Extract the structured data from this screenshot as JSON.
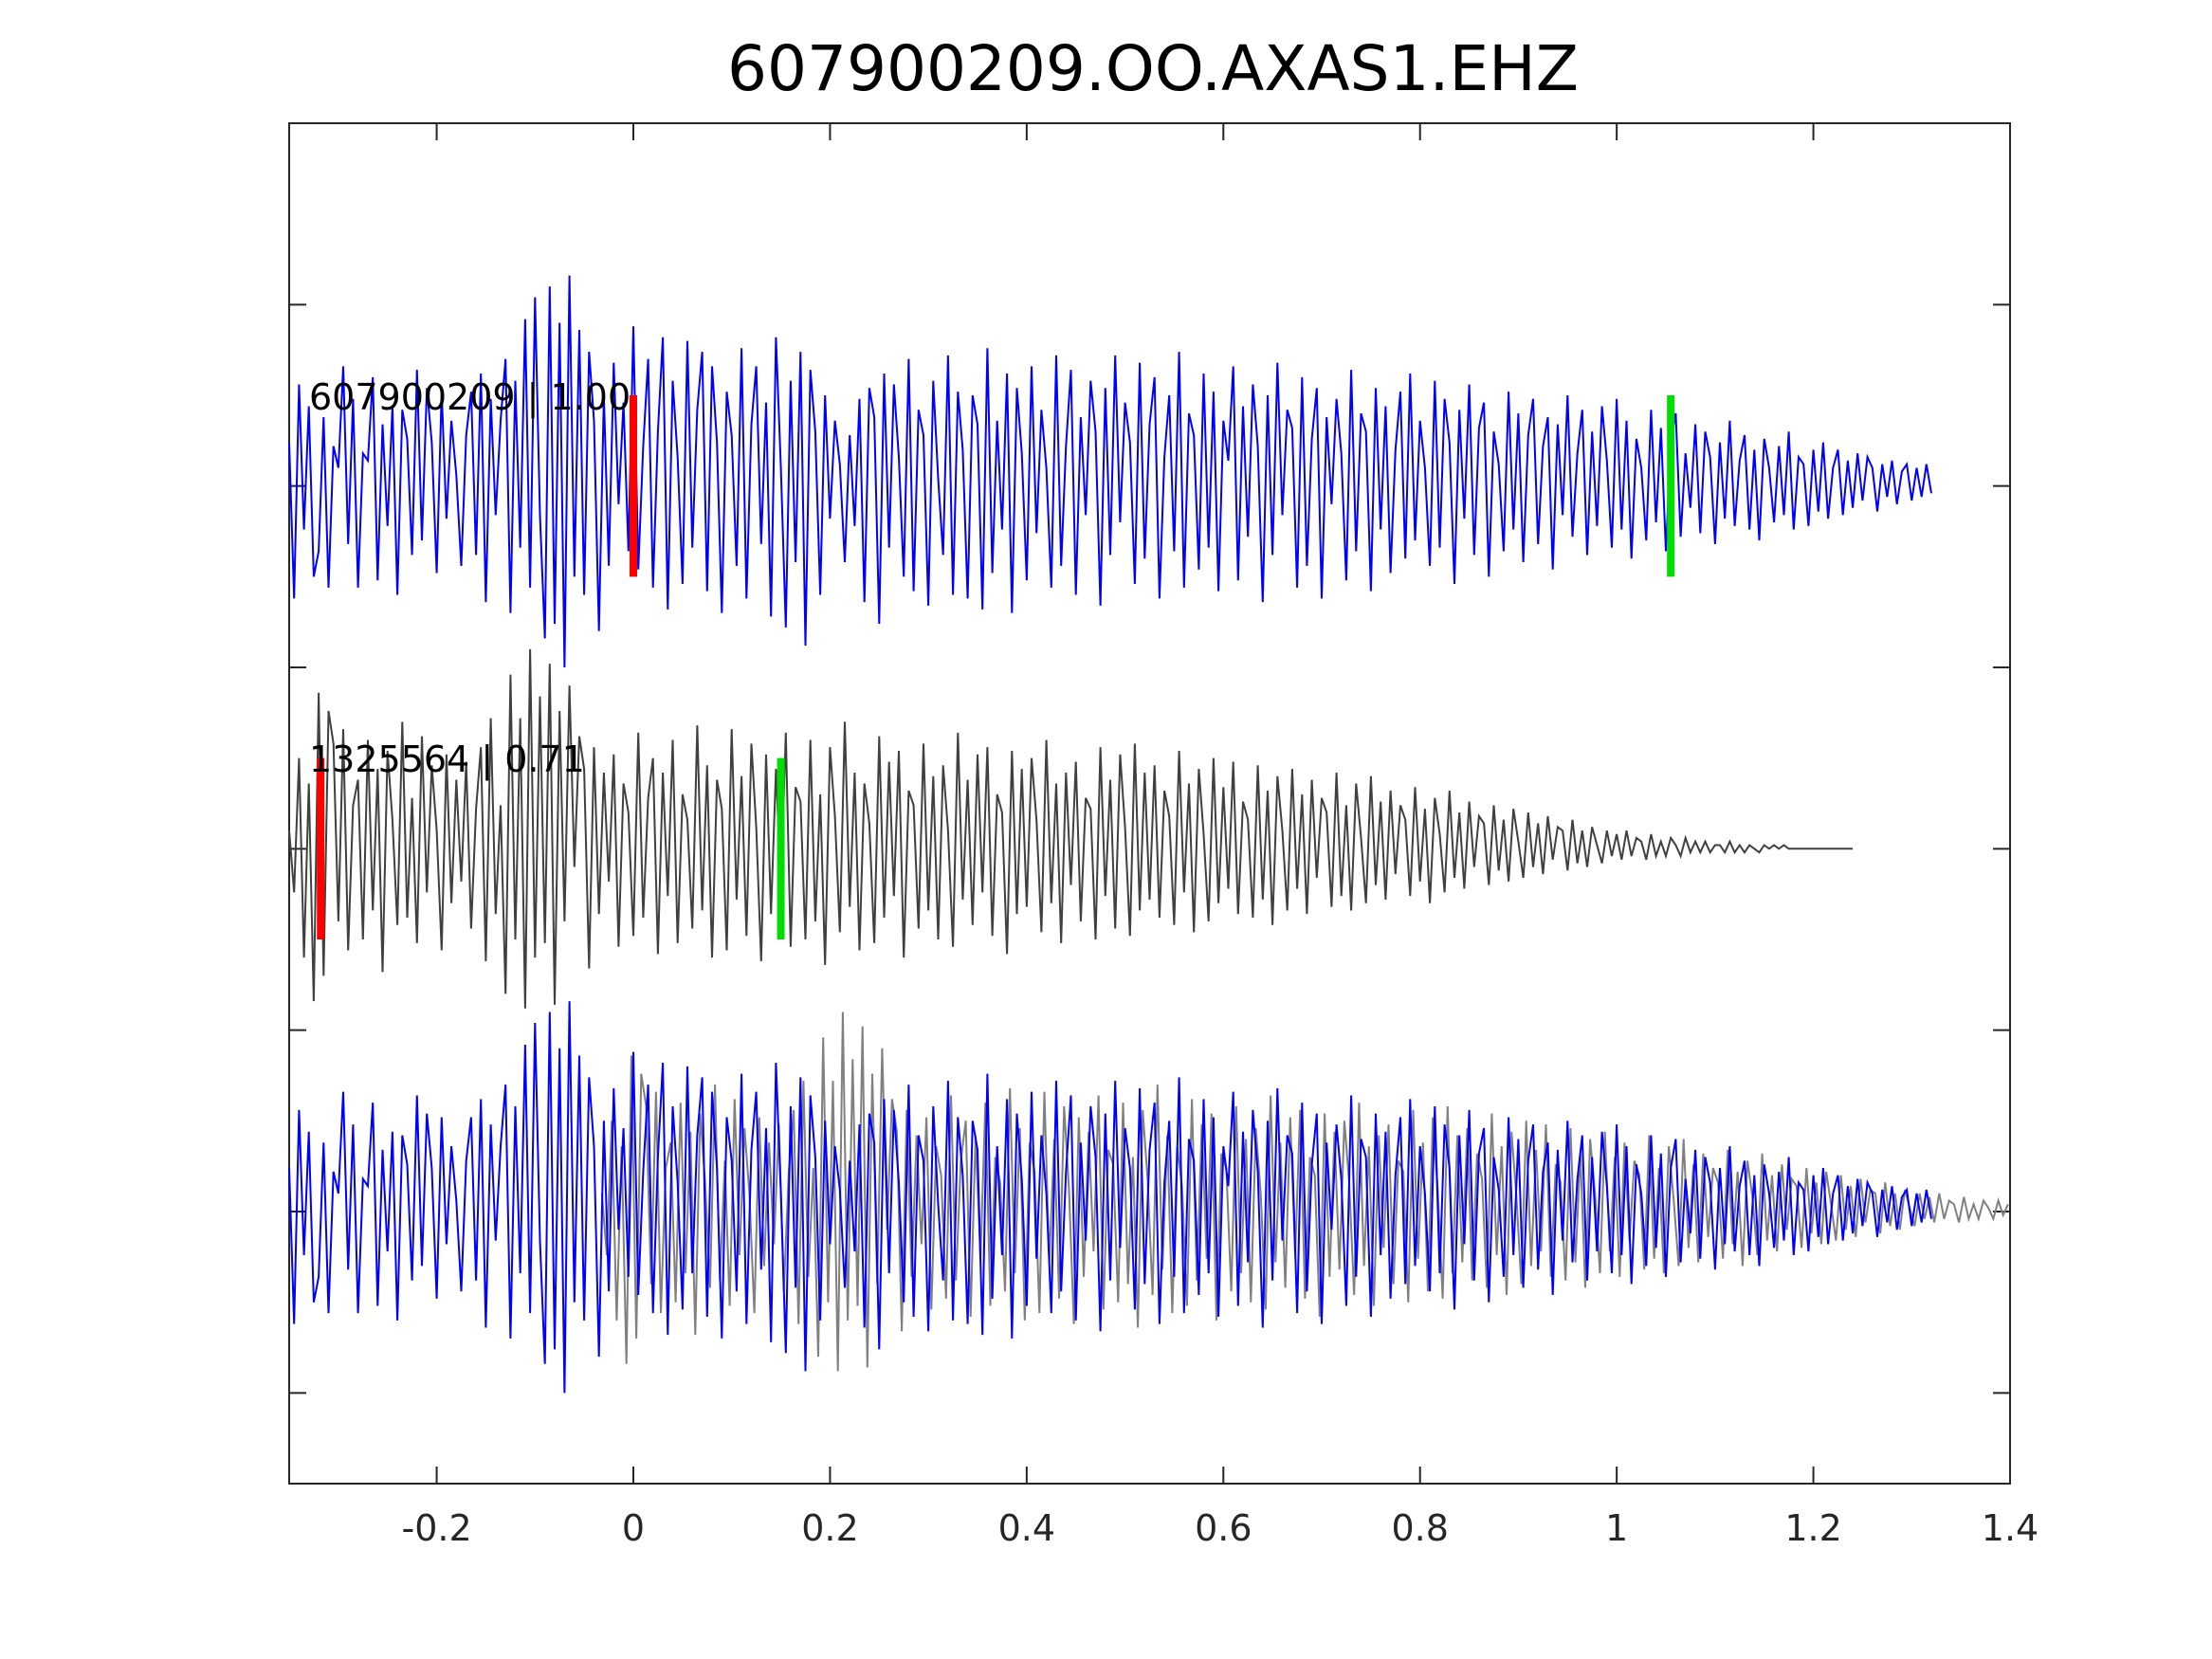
{
  "chart_data": {
    "type": "line",
    "title": "607900209.OO.AXAS1.EHZ",
    "xlabel": "",
    "ylabel": "",
    "xlim": [
      -0.35,
      1.4
    ],
    "xticks": [
      -0.2,
      0,
      0.2,
      0.4,
      0.6,
      0.8,
      1,
      1.2,
      1.4
    ],
    "xtick_labels": [
      "-0.2",
      "0",
      "0.2",
      "0.4",
      "0.6",
      "0.8",
      "1",
      "1.2",
      "1.4"
    ],
    "yticks": [
      -1.5,
      -1.0,
      -0.5,
      0.0,
      0.5,
      1.0,
      1.5
    ],
    "ylim": [
      -1.75,
      2.0
    ],
    "grid": false,
    "legend": "none",
    "sample_dt": 0.005,
    "traces": [
      {
        "label": "607900209 | 1.00",
        "color": "#0000ff",
        "offset": 1.0,
        "picks": [
          {
            "t": 0.0,
            "color": "#ff0000"
          },
          {
            "t": 1.055,
            "color": "#00dd00"
          }
        ],
        "amplitudes": [
          0.12,
          -0.31,
          0.28,
          -0.12,
          0.22,
          -0.25,
          -0.18,
          0.19,
          -0.28,
          0.11,
          0.05,
          0.33,
          -0.16,
          0.24,
          -0.28,
          0.09,
          0.07,
          0.3,
          -0.26,
          0.17,
          -0.11,
          0.22,
          -0.3,
          0.21,
          0.13,
          -0.19,
          0.32,
          -0.15,
          0.27,
          0.12,
          -0.24,
          0.26,
          -0.09,
          0.18,
          0.03,
          -0.22,
          0.14,
          0.26,
          -0.19,
          0.31,
          -0.32,
          0.24,
          -0.08,
          0.18,
          0.35,
          -0.35,
          0.29,
          -0.17,
          0.46,
          -0.28,
          0.52,
          -0.08,
          -0.42,
          0.55,
          -0.38,
          0.45,
          -0.5,
          0.58,
          -0.25,
          0.43,
          -0.3,
          0.37,
          0.18,
          -0.4,
          0.25,
          -0.22,
          0.34,
          -0.05,
          0.23,
          -0.18,
          0.44,
          -0.23,
          0.11,
          0.35,
          -0.28,
          0.15,
          0.41,
          -0.34,
          0.29,
          0.08,
          -0.27,
          0.4,
          -0.17,
          0.21,
          0.37,
          -0.29,
          0.33,
          0.12,
          -0.35,
          0.26,
          0.14,
          -0.22,
          0.38,
          -0.31,
          0.17,
          0.33,
          -0.16,
          0.23,
          -0.36,
          0.41,
          0.05,
          -0.39,
          0.29,
          -0.21,
          0.37,
          -0.44,
          0.32,
          0.15,
          -0.3,
          0.25,
          -0.09,
          0.18,
          0.06,
          -0.21,
          0.14,
          -0.11,
          0.24,
          -0.32,
          0.27,
          0.19,
          -0.38,
          0.31,
          -0.17,
          0.28,
          0.08,
          -0.25,
          0.35,
          -0.29,
          0.21,
          0.14,
          -0.33,
          0.29,
          0.02,
          -0.19,
          0.36,
          -0.3,
          0.26,
          0.1,
          -0.31,
          0.25,
          0.17,
          -0.34,
          0.38,
          -0.24,
          0.18,
          -0.12,
          0.31,
          -0.35,
          0.27,
          0.09,
          -0.26,
          0.33,
          -0.13,
          0.21,
          0.05,
          -0.28,
          0.36,
          -0.22,
          0.11,
          0.32,
          -0.3,
          0.19,
          -0.08,
          0.29,
          0.15,
          -0.33,
          0.27,
          -0.19,
          0.36,
          -0.1,
          0.23,
          0.12,
          -0.27,
          0.34,
          -0.2,
          0.17,
          0.3,
          -0.31,
          0.08,
          0.25,
          -0.18,
          0.37,
          -0.28,
          0.2,
          0.14,
          -0.23,
          0.31,
          -0.17,
          0.26,
          -0.29,
          0.18,
          0.07,
          0.33,
          -0.26,
          0.22,
          -0.14,
          0.28,
          0.11,
          -0.32,
          0.25,
          -0.19,
          0.34,
          -0.08,
          0.21,
          0.16,
          -0.28,
          0.3,
          -0.22,
          0.13,
          0.27,
          -0.31,
          0.19,
          -0.05,
          0.24,
          0.09,
          -0.26,
          0.32,
          -0.18,
          0.2,
          0.15,
          -0.29,
          0.27,
          -0.12,
          0.22,
          -0.24,
          0.1,
          0.26,
          -0.2,
          0.31,
          -0.15,
          0.18,
          0.05,
          -0.22,
          0.29,
          -0.17,
          0.24,
          0.12,
          -0.27,
          0.21,
          -0.09,
          0.28,
          -0.19,
          0.16,
          0.23,
          -0.25,
          0.15,
          0.06,
          -0.18,
          0.26,
          -0.12,
          0.2,
          -0.21,
          0.14,
          0.24,
          -0.16,
          0.11,
          0.19,
          -0.23,
          0.17,
          -0.08,
          0.25,
          -0.14,
          0.09,
          0.21,
          -0.19,
          0.15,
          -0.11,
          0.22,
          0.07,
          -0.17,
          0.24,
          -0.12,
          0.18,
          -0.2,
          0.13,
          0.05,
          -0.15,
          0.21,
          -0.1,
          0.16,
          -0.18,
          0.12,
          0.2,
          -0.14,
          0.09,
          -0.06,
          0.17,
          -0.13,
          0.15,
          0.08,
          -0.16,
          0.12,
          -0.09,
          0.18,
          -0.11,
          0.07,
          0.14,
          -0.12,
          0.1,
          -0.15,
          0.13,
          0.05,
          -0.1,
          0.11,
          -0.08,
          0.15,
          -0.12,
          0.08,
          0.06,
          -0.11,
          0.1,
          -0.07,
          0.12,
          -0.09,
          0.05,
          0.1,
          -0.08,
          0.07,
          -0.06,
          0.09,
          -0.04,
          0.08,
          0.05,
          -0.07,
          0.06,
          -0.03,
          0.07,
          -0.05,
          0.04,
          0.06,
          -0.04,
          0.05,
          -0.03,
          0.06,
          -0.02
        ]
      },
      {
        "label": "1325564 | 0.71",
        "color": "#404040",
        "offset": 0.0,
        "picks": [
          {
            "t": -0.318,
            "color": "#ff0000"
          },
          {
            "t": 0.15,
            "color": "#00dd00"
          }
        ],
        "amplitudes": [
          0.05,
          -0.12,
          0.25,
          -0.3,
          0.18,
          -0.42,
          0.43,
          -0.35,
          0.38,
          0.29,
          -0.2,
          0.33,
          -0.28,
          0.12,
          0.19,
          -0.25,
          0.3,
          -0.17,
          0.22,
          -0.34,
          0.27,
          0.08,
          -0.21,
          0.35,
          -0.19,
          0.14,
          -0.26,
          0.31,
          -0.12,
          0.23,
          0.05,
          -0.28,
          0.26,
          -0.15,
          0.19,
          -0.09,
          0.24,
          -0.22,
          0.11,
          0.28,
          -0.31,
          0.36,
          -0.18,
          0.12,
          -0.4,
          0.48,
          -0.25,
          0.36,
          -0.44,
          0.55,
          -0.3,
          0.42,
          -0.26,
          0.51,
          -0.43,
          0.38,
          -0.2,
          0.45,
          -0.05,
          0.31,
          0.22,
          -0.33,
          0.28,
          -0.18,
          0.21,
          -0.09,
          0.26,
          -0.27,
          0.18,
          0.1,
          -0.24,
          0.32,
          -0.19,
          0.14,
          0.25,
          -0.29,
          0.21,
          -0.13,
          0.3,
          -0.26,
          0.15,
          0.08,
          -0.22,
          0.34,
          -0.17,
          0.23,
          -0.3,
          0.19,
          0.11,
          -0.28,
          0.33,
          -0.14,
          0.2,
          -0.24,
          0.29,
          0.06,
          -0.31,
          0.26,
          -0.18,
          0.22,
          -0.11,
          0.32,
          -0.27,
          0.17,
          0.13,
          -0.25,
          0.3,
          -0.2,
          0.15,
          -0.32,
          0.28,
          0.09,
          -0.23,
          0.35,
          -0.16,
          0.21,
          -0.28,
          0.18,
          0.07,
          -0.26,
          0.31,
          -0.19,
          0.24,
          -0.13,
          0.27,
          -0.3,
          0.16,
          0.12,
          -0.22,
          0.29,
          -0.17,
          0.2,
          -0.25,
          0.23,
          0.05,
          -0.27,
          0.32,
          -0.14,
          0.19,
          -0.21,
          0.26,
          -0.12,
          0.28,
          -0.24,
          0.15,
          0.1,
          -0.29,
          0.27,
          -0.18,
          0.22,
          -0.16,
          0.25,
          0.08,
          -0.23,
          0.3,
          -0.15,
          0.18,
          -0.26,
          0.21,
          -0.1,
          0.24,
          -0.2,
          0.14,
          0.11,
          -0.25,
          0.28,
          -0.13,
          0.19,
          -0.22,
          0.26,
          0.06,
          -0.24,
          0.29,
          -0.17,
          0.21,
          -0.14,
          0.23,
          -0.19,
          0.16,
          0.09,
          -0.21,
          0.27,
          -0.12,
          0.18,
          -0.23,
          0.22,
          0.04,
          -0.2,
          0.25,
          -0.15,
          0.17,
          -0.11,
          0.24,
          -0.18,
          0.13,
          0.08,
          -0.19,
          0.23,
          -0.14,
          0.16,
          -0.21,
          0.2,
          0.05,
          -0.17,
          0.22,
          -0.11,
          0.15,
          -0.18,
          0.19,
          -0.08,
          0.14,
          0.1,
          -0.16,
          0.21,
          -0.13,
          0.12,
          -0.17,
          0.18,
          0.03,
          -0.15,
          0.2,
          -0.1,
          0.13,
          -0.14,
          0.16,
          -0.07,
          0.12,
          0.08,
          -0.13,
          0.17,
          -0.09,
          0.11,
          -0.15,
          0.14,
          0.04,
          -0.12,
          0.16,
          -0.08,
          0.1,
          -0.11,
          0.13,
          -0.05,
          0.09,
          0.07,
          -0.1,
          0.12,
          -0.06,
          0.08,
          -0.09,
          0.11,
          0.02,
          -0.08,
          0.1,
          -0.05,
          0.07,
          -0.07,
          0.09,
          -0.03,
          0.06,
          0.05,
          -0.06,
          0.08,
          -0.04,
          0.05,
          -0.05,
          0.06,
          0.01,
          -0.04,
          0.05,
          -0.02,
          0.04,
          -0.03,
          0.05,
          -0.02,
          0.03,
          0.02,
          -0.03,
          0.04,
          -0.02,
          0.02,
          -0.02,
          0.03,
          0.01,
          -0.02,
          0.03,
          -0.01,
          0.02,
          -0.01,
          0.02,
          -0.01,
          0.01,
          0.01,
          -0.01,
          0.02,
          -0.01,
          0.01,
          -0.01,
          0.01,
          0.0,
          -0.01,
          0.01,
          0.0,
          0.01,
          0.0,
          0.01,
          0.0,
          0.0,
          0.0,
          0.0,
          0.0,
          0.0,
          0.0,
          0.0,
          0.0,
          0.0,
          0.0,
          0.0,
          0.0,
          0.0
        ]
      },
      {
        "label": "",
        "color": "#808080",
        "offset": -1.0,
        "source": "trace 2 aligned on picks"
      },
      {
        "label": "",
        "color": "#0000ff",
        "offset": -1.0,
        "source": "trace 1"
      }
    ]
  }
}
